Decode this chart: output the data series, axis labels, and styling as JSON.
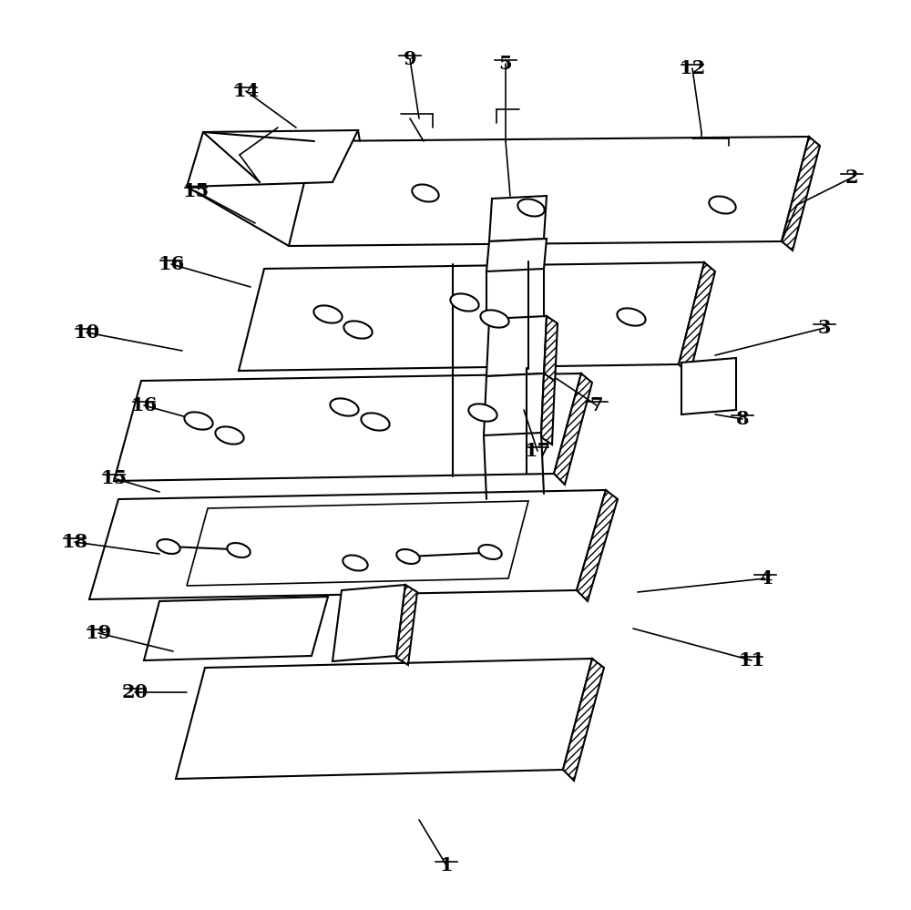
{
  "bg_color": "#ffffff",
  "line_color": "#000000",
  "figsize": [
    10.0,
    9.99
  ],
  "dpi": 100,
  "lw": 1.5,
  "label_fontsize": 15,
  "annotations": [
    [
      "1",
      490,
      950,
      460,
      900
    ],
    [
      "2",
      935,
      195,
      875,
      225
    ],
    [
      "3",
      905,
      360,
      785,
      390
    ],
    [
      "4",
      840,
      635,
      700,
      650
    ],
    [
      "5",
      555,
      70,
      555,
      155
    ],
    [
      "7",
      655,
      445,
      610,
      415
    ],
    [
      "8",
      815,
      460,
      785,
      455
    ],
    [
      "9",
      450,
      65,
      460,
      130
    ],
    [
      "10",
      95,
      365,
      200,
      385
    ],
    [
      "11",
      825,
      725,
      695,
      690
    ],
    [
      "12",
      760,
      75,
      770,
      145
    ],
    [
      "14",
      270,
      100,
      325,
      140
    ],
    [
      "15",
      215,
      210,
      280,
      245
    ],
    [
      "15",
      125,
      525,
      175,
      540
    ],
    [
      "16",
      188,
      290,
      275,
      315
    ],
    [
      "16",
      158,
      445,
      205,
      458
    ],
    [
      "17",
      590,
      495,
      575,
      450
    ],
    [
      "18",
      82,
      595,
      175,
      608
    ],
    [
      "19",
      108,
      695,
      190,
      715
    ],
    [
      "20",
      148,
      760,
      205,
      760
    ]
  ]
}
